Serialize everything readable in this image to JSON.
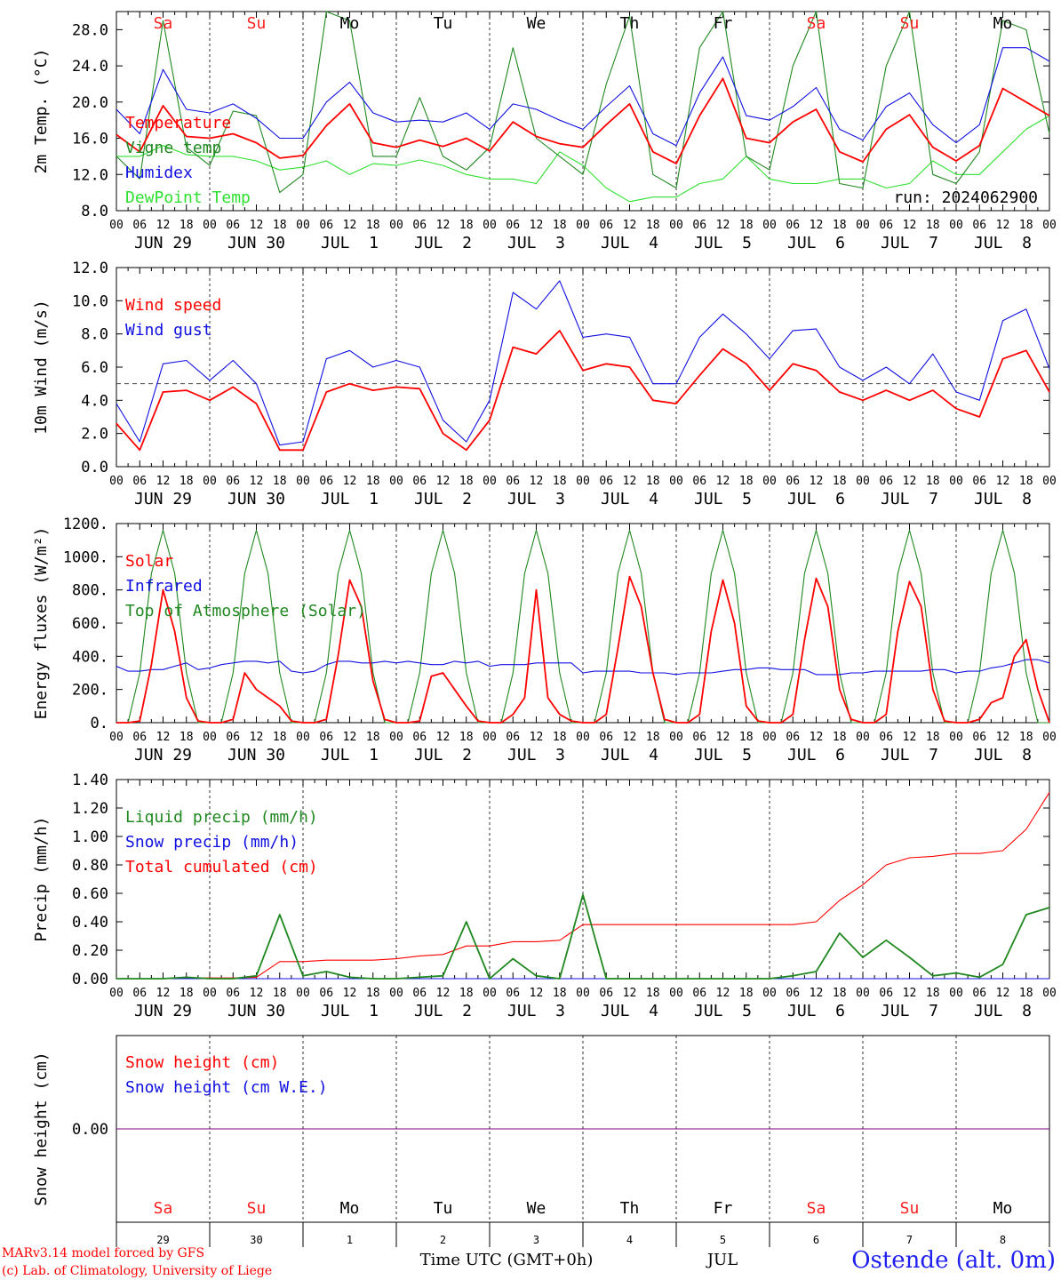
{
  "run_label": "run: 2024062900",
  "hour_ticks": [
    "00",
    "06",
    "12",
    "18"
  ],
  "end_hour_tick": "00",
  "date_labels": [
    "JUN 29",
    "JUN 30",
    "JUL  1",
    "JUL  2",
    "JUL  3",
    "JUL  4",
    "JUL  5",
    "JUL  6",
    "JUL  7",
    "JUL  8"
  ],
  "days": [
    {
      "abbr": "Sa",
      "weekend": true,
      "num": "29"
    },
    {
      "abbr": "Su",
      "weekend": true,
      "num": "30"
    },
    {
      "abbr": "Mo",
      "weekend": false,
      "num": "1"
    },
    {
      "abbr": "Tu",
      "weekend": false,
      "num": "2"
    },
    {
      "abbr": "We",
      "weekend": false,
      "num": "3"
    },
    {
      "abbr": "Th",
      "weekend": false,
      "num": "4"
    },
    {
      "abbr": "Fr",
      "weekend": false,
      "num": "5"
    },
    {
      "abbr": "Sa",
      "weekend": true,
      "num": "6"
    },
    {
      "abbr": "Su",
      "weekend": true,
      "num": "7"
    },
    {
      "abbr": "Mo",
      "weekend": false,
      "num": "8"
    }
  ],
  "colors": {
    "weekend": "#ff2020",
    "weekday": "#000000",
    "red": "#ff0000",
    "blue": "#1010e0",
    "green": "#208820",
    "lightgreen": "#30e030",
    "purple": "#800080"
  },
  "chart_data": [
    {
      "type": "line",
      "panel": "temperature",
      "ylabel": "2m Temp. (°C)",
      "ylim": [
        8,
        30
      ],
      "yticks": [
        "8.0",
        "12.0",
        "16.0",
        "20.0",
        "24.0",
        "28.0"
      ],
      "ytick_values": [
        8,
        12,
        16,
        20,
        24,
        28
      ],
      "x_hours": [
        0,
        6,
        12,
        18,
        24,
        30,
        36,
        42,
        48,
        54,
        60,
        66,
        72,
        78,
        84,
        90,
        96,
        102,
        108,
        114,
        120,
        126,
        132,
        138,
        144,
        150,
        156,
        162,
        168,
        174,
        180,
        186,
        192,
        198,
        204,
        210,
        216,
        222,
        228,
        234,
        240
      ],
      "series": [
        {
          "name": "Temperature",
          "color": "#ff0000",
          "values": [
            16.4,
            14.5,
            19.6,
            16.2,
            16.0,
            16.5,
            15.5,
            13.8,
            14.1,
            17.4,
            19.8,
            15.5,
            15.0,
            15.8,
            15.1,
            16.0,
            14.6,
            17.8,
            16.2,
            15.4,
            15.0,
            17.5,
            19.8,
            14.5,
            13.2,
            18.5,
            22.6,
            16.0,
            15.5,
            17.8,
            19.2,
            14.5,
            13.4,
            17.0,
            18.6,
            15.0,
            13.5,
            15.2,
            21.5,
            20.0,
            18.5
          ]
        },
        {
          "name": "Vigne temp",
          "color": "#208820",
          "values": [
            14.0,
            11.5,
            29.0,
            15.0,
            13.0,
            19.0,
            18.5,
            10.0,
            12.0,
            30.0,
            29.0,
            14.0,
            14.0,
            20.5,
            14.0,
            12.5,
            15.0,
            26.0,
            16.0,
            14.0,
            12.0,
            22.0,
            29.5,
            12.0,
            10.5,
            26.0,
            30.0,
            14.0,
            12.5,
            24.0,
            30.0,
            11.0,
            10.5,
            24.0,
            30.0,
            12.0,
            11.0,
            14.5,
            29.0,
            28.0,
            16.5
          ]
        },
        {
          "name": "Humidex",
          "color": "#1010e0",
          "values": [
            19.2,
            16.5,
            23.6,
            19.2,
            18.8,
            19.8,
            18.2,
            16.0,
            16.0,
            20.0,
            22.2,
            18.8,
            17.8,
            18.0,
            17.8,
            18.8,
            17.0,
            19.8,
            19.2,
            18.0,
            17.0,
            19.5,
            21.8,
            16.5,
            15.2,
            21.0,
            25.0,
            18.5,
            18.0,
            19.5,
            21.6,
            17.0,
            15.8,
            19.5,
            21.0,
            17.5,
            15.5,
            17.5,
            26.0,
            26.0,
            24.5
          ]
        },
        {
          "name": "DewPoint Temp",
          "color": "#30e030",
          "values": [
            14.0,
            14.0,
            15.2,
            14.2,
            14.0,
            14.0,
            13.5,
            12.5,
            12.8,
            13.5,
            12.0,
            13.2,
            13.0,
            13.6,
            13.0,
            12.0,
            11.5,
            11.5,
            11.0,
            14.5,
            13.0,
            10.5,
            9.0,
            9.5,
            9.5,
            11.0,
            11.5,
            14.0,
            11.5,
            11.0,
            11.0,
            11.5,
            11.5,
            10.5,
            11.0,
            13.5,
            12.0,
            12.0,
            14.5,
            17.0,
            18.5
          ]
        }
      ]
    },
    {
      "type": "line",
      "panel": "wind",
      "ylabel": "10m Wind (m/s)",
      "ylim": [
        0,
        12
      ],
      "reference_line": 5,
      "yticks": [
        "0.0",
        "2.0",
        "4.0",
        "6.0",
        "8.0",
        "10.0",
        "12.0"
      ],
      "ytick_values": [
        0,
        2,
        4,
        6,
        8,
        10,
        12
      ],
      "x_hours": [
        0,
        6,
        12,
        18,
        24,
        30,
        36,
        42,
        48,
        54,
        60,
        66,
        72,
        78,
        84,
        90,
        96,
        102,
        108,
        114,
        120,
        126,
        132,
        138,
        144,
        150,
        156,
        162,
        168,
        174,
        180,
        186,
        192,
        198,
        204,
        210,
        216,
        222,
        228,
        234,
        240
      ],
      "series": [
        {
          "name": "Wind speed",
          "color": "#ff0000",
          "values": [
            2.6,
            1.0,
            4.5,
            4.6,
            4.0,
            4.8,
            3.8,
            1.0,
            1.0,
            4.5,
            5.0,
            4.6,
            4.8,
            4.7,
            2.0,
            1.0,
            2.8,
            7.2,
            6.8,
            8.2,
            5.8,
            6.2,
            6.0,
            4.0,
            3.8,
            5.5,
            7.1,
            6.2,
            4.6,
            6.2,
            5.8,
            4.5,
            4.0,
            4.6,
            4.0,
            4.6,
            3.5,
            3.0,
            6.5,
            7.0,
            4.5
          ]
        },
        {
          "name": "Wind gust",
          "color": "#1010e0",
          "values": [
            3.8,
            1.5,
            6.2,
            6.4,
            5.2,
            6.4,
            5.0,
            1.3,
            1.5,
            6.5,
            7.0,
            6.0,
            6.4,
            6.0,
            2.8,
            1.5,
            4.0,
            10.5,
            9.5,
            11.2,
            7.8,
            8.0,
            7.8,
            5.0,
            5.0,
            7.8,
            9.2,
            8.0,
            6.5,
            8.2,
            8.3,
            6.0,
            5.2,
            6.0,
            5.0,
            6.8,
            4.5,
            4.0,
            8.8,
            9.5,
            5.9
          ]
        }
      ]
    },
    {
      "type": "line",
      "panel": "energy",
      "ylabel": "Energy fluxes (W/m²)",
      "ylim": [
        0,
        1200
      ],
      "yticks": [
        "0.",
        "200.",
        "400.",
        "600.",
        "800.",
        "1000.",
        "1200."
      ],
      "ytick_values": [
        0,
        200,
        400,
        600,
        800,
        1000,
        1200
      ],
      "x_hours": [
        0,
        3,
        6,
        9,
        12,
        15,
        18,
        21,
        24,
        27,
        30,
        33,
        36,
        39,
        42,
        45,
        48,
        51,
        54,
        57,
        60,
        63,
        66,
        69,
        72,
        75,
        78,
        81,
        84,
        87,
        90,
        93,
        96,
        99,
        102,
        105,
        108,
        111,
        114,
        117,
        120,
        123,
        126,
        129,
        132,
        135,
        138,
        141,
        144,
        147,
        150,
        153,
        156,
        159,
        162,
        165,
        168,
        171,
        174,
        177,
        180,
        183,
        186,
        189,
        192,
        195,
        198,
        201,
        204,
        207,
        210,
        213,
        216,
        219,
        222,
        225,
        228,
        231,
        234,
        237,
        240
      ],
      "series": [
        {
          "name": "Solar",
          "color": "#ff0000",
          "values": [
            0,
            0,
            10,
            350,
            800,
            550,
            150,
            10,
            0,
            0,
            20,
            300,
            200,
            150,
            100,
            10,
            0,
            0,
            20,
            400,
            860,
            700,
            250,
            20,
            0,
            0,
            10,
            280,
            300,
            200,
            100,
            10,
            0,
            0,
            50,
            150,
            800,
            150,
            50,
            10,
            0,
            0,
            50,
            450,
            880,
            700,
            300,
            20,
            0,
            0,
            50,
            550,
            860,
            600,
            100,
            10,
            0,
            0,
            50,
            500,
            870,
            700,
            200,
            20,
            0,
            0,
            50,
            550,
            850,
            700,
            200,
            10,
            0,
            0,
            20,
            120,
            150,
            400,
            500,
            200,
            0
          ]
        },
        {
          "name": "Infrared",
          "color": "#1010e0",
          "values": [
            340,
            310,
            310,
            320,
            320,
            340,
            360,
            320,
            330,
            350,
            360,
            370,
            370,
            360,
            370,
            310,
            300,
            310,
            350,
            370,
            370,
            360,
            360,
            370,
            360,
            370,
            360,
            350,
            350,
            370,
            360,
            370,
            340,
            350,
            350,
            350,
            360,
            360,
            360,
            360,
            300,
            310,
            310,
            310,
            310,
            300,
            300,
            300,
            290,
            300,
            300,
            300,
            310,
            320,
            320,
            330,
            330,
            320,
            320,
            320,
            290,
            290,
            290,
            300,
            300,
            310,
            310,
            310,
            310,
            310,
            320,
            320,
            300,
            310,
            310,
            330,
            340,
            360,
            380,
            380,
            360
          ]
        },
        {
          "name": "Top of Atmosphere (Solar)",
          "color": "#208820",
          "values": [
            0,
            0,
            300,
            900,
            1160,
            900,
            300,
            0,
            0,
            0,
            300,
            900,
            1160,
            900,
            300,
            0,
            0,
            0,
            300,
            900,
            1160,
            900,
            300,
            0,
            0,
            0,
            300,
            900,
            1160,
            900,
            300,
            0,
            0,
            0,
            300,
            900,
            1160,
            900,
            300,
            0,
            0,
            0,
            300,
            900,
            1160,
            900,
            300,
            0,
            0,
            0,
            300,
            900,
            1160,
            900,
            300,
            0,
            0,
            0,
            300,
            900,
            1160,
            900,
            300,
            0,
            0,
            0,
            300,
            900,
            1160,
            900,
            300,
            0,
            0,
            0,
            300,
            900,
            1160,
            900,
            300,
            0,
            0
          ]
        }
      ]
    },
    {
      "type": "line",
      "panel": "precip",
      "ylabel": "Precip (mm/h)",
      "ylim": [
        0,
        1.4
      ],
      "yticks": [
        "0.00",
        "0.20",
        "0.40",
        "0.60",
        "0.80",
        "1.00",
        "1.20",
        "1.40"
      ],
      "ytick_values": [
        0,
        0.2,
        0.4,
        0.6,
        0.8,
        1.0,
        1.2,
        1.4
      ],
      "x_hours": [
        0,
        6,
        12,
        18,
        24,
        30,
        36,
        42,
        48,
        54,
        60,
        66,
        72,
        78,
        84,
        90,
        96,
        102,
        108,
        114,
        120,
        126,
        132,
        138,
        144,
        150,
        156,
        162,
        168,
        174,
        180,
        186,
        192,
        198,
        204,
        210,
        216,
        222,
        228,
        234,
        240
      ],
      "series": [
        {
          "name": "Liquid precip (mm/h)",
          "color": "#208820",
          "values": [
            0,
            0,
            0,
            0.01,
            0,
            0,
            0.02,
            0.45,
            0.02,
            0.05,
            0.01,
            0,
            0,
            0.01,
            0.02,
            0.4,
            0,
            0.14,
            0.02,
            0,
            0.59,
            0,
            0,
            0,
            0,
            0,
            0,
            0,
            0,
            0.02,
            0.05,
            0.32,
            0.15,
            0.27,
            0.15,
            0.02,
            0.04,
            0.01,
            0.1,
            0.45,
            0.5
          ]
        },
        {
          "name": "Snow precip (mm/h)",
          "color": "#1010e0",
          "values": [
            0,
            0,
            0,
            0,
            0,
            0,
            0,
            0,
            0,
            0,
            0,
            0,
            0,
            0,
            0,
            0,
            0,
            0,
            0,
            0,
            0,
            0,
            0,
            0,
            0,
            0,
            0,
            0,
            0,
            0,
            0,
            0,
            0,
            0,
            0,
            0,
            0,
            0,
            0,
            0,
            0
          ]
        },
        {
          "name": "Total cumulated (cm)",
          "color": "#ff0000",
          "values": [
            0,
            0,
            0,
            0.005,
            0.005,
            0.005,
            0.01,
            0.12,
            0.12,
            0.13,
            0.13,
            0.13,
            0.14,
            0.16,
            0.17,
            0.23,
            0.23,
            0.26,
            0.26,
            0.27,
            0.38,
            0.38,
            0.38,
            0.38,
            0.38,
            0.38,
            0.38,
            0.38,
            0.38,
            0.38,
            0.4,
            0.55,
            0.66,
            0.8,
            0.85,
            0.86,
            0.88,
            0.88,
            0.9,
            1.05,
            1.31
          ]
        }
      ]
    },
    {
      "type": "line",
      "panel": "snow",
      "ylabel": "Snow height (cm)",
      "ylim": [
        -1,
        1
      ],
      "yticks": [
        "0.00"
      ],
      "ytick_values": [
        0
      ],
      "x_hours": [
        0,
        240
      ],
      "series": [
        {
          "name": "Snow height (cm)",
          "color": "#ff0000",
          "values": [
            0,
            0
          ]
        },
        {
          "name": "Snow height (cm W.E.)",
          "color": "#1010e0",
          "values": [
            0,
            0
          ]
        }
      ]
    }
  ],
  "x_axis_title": "Time UTC (GMT+0h)",
  "month_label": "JUL",
  "footer": {
    "line1": "MARv3.14 model forced by GFS",
    "line2": "(c) Lab. of Climatology, University of Liege"
  },
  "station": "Ostende (alt. 0m)"
}
